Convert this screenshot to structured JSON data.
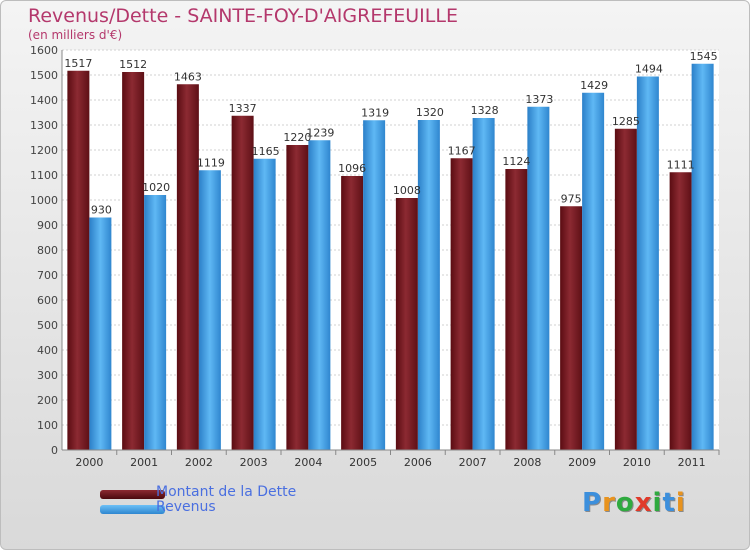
{
  "title": "Revenus/Dette - SAINTE-FOY-D'AIGREFEUILLE",
  "subtitle": "(en milliers d'€)",
  "chart_data": {
    "type": "bar",
    "categories": [
      "2000",
      "2001",
      "2002",
      "2003",
      "2004",
      "2005",
      "2006",
      "2007",
      "2008",
      "2009",
      "2010",
      "2011"
    ],
    "series": [
      {
        "name": "Montant de la Dette",
        "color": "#7a1a22",
        "values": [
          1517,
          1512,
          1463,
          1337,
          1220,
          1096,
          1008,
          1167,
          1124,
          975,
          1285,
          1111
        ],
        "labels": [
          "1517",
          "1512",
          "1463",
          "1337",
          "1220",
          "1096",
          "1008",
          "1167",
          "1124",
          "975",
          "1285",
          "1111"
        ]
      },
      {
        "name": "Revenus",
        "color": "#3ea0e8",
        "values": [
          930,
          1020,
          1119,
          1165,
          1239,
          1319,
          1320,
          1328,
          1373,
          1429,
          1494,
          1545
        ],
        "labels": [
          "930",
          "1020",
          "1119",
          "1165",
          "1239",
          "1319",
          "1320",
          "1328",
          "1373",
          "1429",
          "1494",
          "1545"
        ]
      }
    ],
    "ylim": [
      0,
      1600
    ],
    "yticks": [
      0,
      100,
      200,
      300,
      400,
      500,
      600,
      700,
      800,
      900,
      1000,
      1100,
      1200,
      1300,
      1400,
      1500,
      1600
    ],
    "grid": true,
    "legend_position": "bottom-left"
  },
  "legend": [
    {
      "label": "Montant de la Dette",
      "color": "#7a1a22"
    },
    {
      "label": "Revenus",
      "color": "#3ea0e8"
    }
  ],
  "logo": {
    "letters": [
      "P",
      "r",
      "o",
      "x",
      "i",
      "t",
      "i"
    ],
    "colors": [
      "#3c8fdc",
      "#e8931e",
      "#2faa3f",
      "#e03a2a",
      "#2faa3f",
      "#3c8fdc",
      "#e8931e"
    ]
  }
}
